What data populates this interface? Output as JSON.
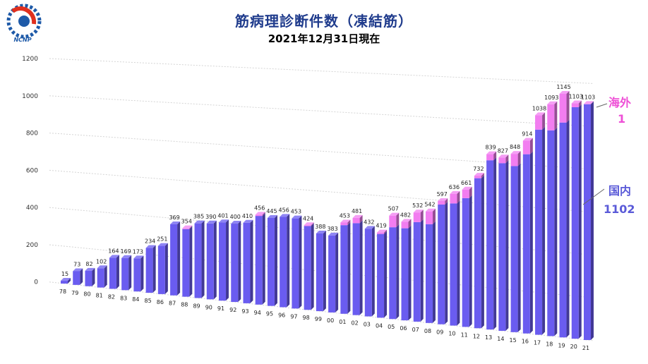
{
  "header": {
    "title": "筋病理診断件数（凍結筋）",
    "subtitle": "2021年12月31日現在",
    "logo_text": "NCNP"
  },
  "legend_labels": {
    "abroad_label": "海外",
    "abroad_count": "1",
    "domestic_label": "国内",
    "domestic_count": "1102"
  },
  "colors": {
    "domestic": "#6a5cf0",
    "abroad": "#f27df0",
    "grid": "#d4d4d4",
    "title": "#1f3b8c"
  },
  "chart_data": {
    "type": "bar",
    "stacked": true,
    "title": "筋病理診断件数（凍結筋）",
    "subtitle": "2021年12月31日現在",
    "categories": [
      "78",
      "79",
      "80",
      "81",
      "82",
      "83",
      "84",
      "85",
      "86",
      "87",
      "88",
      "89",
      "90",
      "91",
      "92",
      "93",
      "94",
      "95",
      "96",
      "97",
      "98",
      "99",
      "00",
      "01",
      "02",
      "03",
      "04",
      "05",
      "06",
      "07",
      "08",
      "09",
      "10",
      "11",
      "12",
      "13",
      "14",
      "15",
      "16",
      "17",
      "18",
      "19",
      "20",
      "21"
    ],
    "totals": [
      15,
      73,
      82,
      102,
      164,
      169,
      173,
      234,
      251,
      369,
      354,
      385,
      390,
      401,
      400,
      410,
      456,
      445,
      456,
      453,
      424,
      388,
      383,
      453,
      481,
      432,
      419,
      507,
      482,
      532,
      542,
      597,
      636,
      661,
      732,
      839,
      827,
      848,
      914,
      1038,
      1093,
      1145,
      1103,
      1103
    ],
    "series": [
      {
        "name": "国内",
        "values": [
          15,
          73,
          82,
          102,
          164,
          169,
          173,
          234,
          251,
          369,
          350,
          385,
          390,
          401,
          400,
          410,
          450,
          445,
          456,
          453,
          420,
          388,
          383,
          440,
          455,
          432,
          412,
          450,
          450,
          485,
          480,
          580,
          590,
          620,
          720,
          810,
          800,
          790,
          850,
          970,
          970,
          1010,
          1085,
          1102
        ]
      },
      {
        "name": "海外",
        "values": [
          0,
          0,
          0,
          0,
          0,
          0,
          0,
          0,
          0,
          0,
          4,
          0,
          0,
          0,
          0,
          0,
          6,
          0,
          0,
          0,
          4,
          0,
          0,
          13,
          26,
          0,
          7,
          57,
          32,
          47,
          62,
          17,
          46,
          41,
          12,
          29,
          27,
          58,
          64,
          68,
          123,
          135,
          18,
          1
        ]
      }
    ],
    "y_ticks": [
      0,
      200,
      400,
      600,
      800,
      1000,
      1200
    ],
    "ylim": [
      0,
      1200
    ],
    "grid": true
  }
}
